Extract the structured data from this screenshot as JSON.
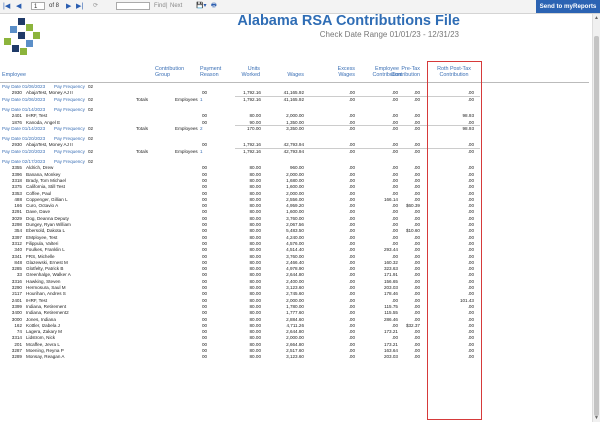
{
  "toolbar": {
    "page_value": "1",
    "page_of": "of 8",
    "find_label": "Find",
    "next_label": "Next",
    "send_button": "Send to myReports"
  },
  "report": {
    "title": "Alabama RSA Contributions File",
    "subtitle": "Check Date Range 01/01/23 - 12/31/23"
  },
  "columns": {
    "employee": "Employee",
    "contribution_group": "Contribution Group",
    "payment_reason": "Payment Reason",
    "units_worked": "Units Worked",
    "wages": "Wages",
    "excess_wages": "Excess Wages",
    "employee_contribution": "Employee Contribution",
    "pretax_contribution": "Pre-Tax Contribution",
    "roth_posttax_contribution": "Roth Post-Tax Contribution"
  },
  "rows": [
    {
      "kind": "pay",
      "paydate": "Pay Date 01/06/2023",
      "freqlabel": "Pay Frequency",
      "freq": "02"
    },
    {
      "kind": "emp",
      "id": "2930",
      "name": "AbajaTest, Money AJ II",
      "reason": "00",
      "units": "1,792.16",
      "wages": "41,165.92",
      "excess": ".00",
      "empc": ".00",
      "pretax": ".00",
      "roth": ".00"
    },
    {
      "kind": "tot",
      "paydate": "Pay Date 01/06/2023",
      "freqlabel": "Pay Frequency",
      "freq": "02",
      "totals": "Totals",
      "emplabel": "Employees",
      "count": "1",
      "units": "1,792.16",
      "wages": "41,165.92",
      "excess": ".00",
      "empc": ".00",
      "pretax": ".00",
      "roth": ".00"
    },
    {
      "kind": "gap"
    },
    {
      "kind": "pay",
      "paydate": "Pay Date 01/14/2023",
      "freqlabel": "Pay Frequency",
      "freq": "02"
    },
    {
      "kind": "emp",
      "id": "2401",
      "name": "IHRF, Test",
      "reason": "00",
      "units": "80.00",
      "wages": "2,000.00",
      "excess": ".00",
      "empc": ".00",
      "pretax": ".00",
      "roth": "98.93"
    },
    {
      "kind": "emp",
      "id": "1876",
      "name": "Kanoda, Angel E",
      "reason": "00",
      "units": "90.00",
      "wages": "1,350.00",
      "excess": ".00",
      "empc": ".00",
      "pretax": ".00",
      "roth": ".00"
    },
    {
      "kind": "tot",
      "paydate": "Pay Date 01/14/2023",
      "freqlabel": "Pay Frequency",
      "freq": "02",
      "totals": "Totals",
      "emplabel": "Employees",
      "count": "2",
      "units": "170.00",
      "wages": "3,350.00",
      "excess": ".00",
      "empc": ".00",
      "pretax": ".00",
      "roth": "98.93"
    },
    {
      "kind": "gap"
    },
    {
      "kind": "pay",
      "paydate": "Pay Date 01/20/2023",
      "freqlabel": "Pay Frequency",
      "freq": "02"
    },
    {
      "kind": "emp",
      "id": "2930",
      "name": "AbajaTest, Money AJ II",
      "reason": "00",
      "units": "1,792.16",
      "wages": "42,793.94",
      "excess": ".00",
      "empc": ".00",
      "pretax": ".00",
      "roth": ".00"
    },
    {
      "kind": "tot",
      "paydate": "Pay Date 01/20/2023",
      "freqlabel": "Pay Frequency",
      "freq": "02",
      "totals": "Totals",
      "emplabel": "Employees",
      "count": "1",
      "units": "1,792.16",
      "wages": "42,793.94",
      "excess": ".00",
      "empc": ".00",
      "pretax": ".00",
      "roth": ".00"
    },
    {
      "kind": "gap"
    },
    {
      "kind": "pay",
      "paydate": "Pay Date 02/17/2023",
      "freqlabel": "Pay Frequency",
      "freq": "02"
    },
    {
      "kind": "emp",
      "id": "3355",
      "name": "Aldrich, Drew",
      "reason": "00",
      "units": "80.00",
      "wages": "960.00",
      "excess": ".00",
      "empc": ".00",
      "pretax": ".00",
      "roth": ".00"
    },
    {
      "kind": "emp",
      "id": "3396",
      "name": "Banana, Monkey",
      "reason": "00",
      "units": "80.00",
      "wages": "2,000.00",
      "excess": ".00",
      "empc": ".00",
      "pretax": ".00",
      "roth": ".00"
    },
    {
      "kind": "emp",
      "id": "3318",
      "name": "Brady, Tom Michael",
      "reason": "00",
      "units": "80.00",
      "wages": "1,680.00",
      "excess": ".00",
      "empc": ".00",
      "pretax": ".00",
      "roth": ".00"
    },
    {
      "kind": "emp",
      "id": "3375",
      "name": "California, Still Test",
      "reason": "00",
      "units": "80.00",
      "wages": "1,600.00",
      "excess": ".00",
      "empc": ".00",
      "pretax": ".00",
      "roth": ".00"
    },
    {
      "kind": "emp",
      "id": "3353",
      "name": "Coffee, Paul",
      "reason": "00",
      "units": "80.00",
      "wages": "2,000.00",
      "excess": ".00",
      "empc": ".00",
      "pretax": ".00",
      "roth": ".00"
    },
    {
      "kind": "emp",
      "id": "488",
      "name": "Coppenger, Gillian L",
      "reason": "00",
      "units": "80.00",
      "wages": "2,556.00",
      "excess": ".00",
      "empc": "166.14",
      "pretax": ".00",
      "roth": ".00"
    },
    {
      "kind": "emp",
      "id": "166",
      "name": "Curo, Octavio A",
      "reason": "00",
      "units": "80.00",
      "wages": "4,959.20",
      "excess": ".00",
      "empc": ".00",
      "pretax": "$60.39",
      "roth": ".00"
    },
    {
      "kind": "emp",
      "id": "3291",
      "name": "Dave, Dave",
      "reason": "00",
      "units": "80.00",
      "wages": "1,600.00",
      "excess": ".00",
      "empc": ".00",
      "pretax": ".00",
      "roth": ".00"
    },
    {
      "kind": "emp",
      "id": "3029",
      "name": "Dog, Deanna Deputy",
      "reason": "00",
      "units": "80.00",
      "wages": "3,760.00",
      "excess": ".00",
      "empc": ".00",
      "pretax": ".00",
      "roth": ".00"
    },
    {
      "kind": "emp",
      "id": "3298",
      "name": "Dungey, Ryan William",
      "reason": "00",
      "units": "80.00",
      "wages": "2,067.56",
      "excess": ".00",
      "empc": ".00",
      "pretax": ".00",
      "roth": ".00"
    },
    {
      "kind": "emp",
      "id": "354",
      "name": "Ebersold, Dakota L",
      "reason": "00",
      "units": "80.00",
      "wages": "5,483.50",
      "excess": ".00",
      "empc": ".00",
      "pretax": "$10.60",
      "roth": ".00"
    },
    {
      "kind": "emp",
      "id": "3397",
      "name": "EMployee, Test",
      "reason": "00",
      "units": "80.00",
      "wages": "4,240.00",
      "excess": ".00",
      "empc": ".00",
      "pretax": ".00",
      "roth": ".00"
    },
    {
      "kind": "emp",
      "id": "3312",
      "name": "Filippula, Valteri",
      "reason": "00",
      "units": "80.00",
      "wages": "4,576.00",
      "excess": ".00",
      "empc": ".00",
      "pretax": ".00",
      "roth": ".00"
    },
    {
      "kind": "emp",
      "id": "340",
      "name": "Foulkes, Franklin L",
      "reason": "00",
      "units": "80.00",
      "wages": "4,514.40",
      "excess": ".00",
      "empc": "293.44",
      "pretax": ".00",
      "roth": ".00"
    },
    {
      "kind": "emp",
      "id": "3341",
      "name": "FRS, Michelle",
      "reason": "00",
      "units": "80.00",
      "wages": "3,760.00",
      "excess": ".00",
      "empc": ".00",
      "pretax": ".00",
      "roth": ".00"
    },
    {
      "kind": "emp",
      "id": "848",
      "name": "Glazewski, Ernest M",
      "reason": "00",
      "units": "80.00",
      "wages": "2,466.40",
      "excess": ".00",
      "empc": "160.32",
      "pretax": ".00",
      "roth": ".00"
    },
    {
      "kind": "emp",
      "id": "3285",
      "name": "Glotfelty, Patrick B",
      "reason": "00",
      "units": "80.00",
      "wages": "4,978.90",
      "excess": ".00",
      "empc": "323.63",
      "pretax": ".00",
      "roth": ".00"
    },
    {
      "kind": "emp",
      "id": "33",
      "name": "Greenhalge, Walker A",
      "reason": "00",
      "units": "80.00",
      "wages": "2,644.80",
      "excess": ".00",
      "empc": "171.91",
      "pretax": ".00",
      "roth": ".00"
    },
    {
      "kind": "emp",
      "id": "3316",
      "name": "Hawking, Steven",
      "reason": "00",
      "units": "80.00",
      "wages": "2,400.00",
      "excess": ".00",
      "empc": "156.65",
      "pretax": ".00",
      "roth": ".00"
    },
    {
      "kind": "emp",
      "id": "3290",
      "name": "Hermosura, Saul M",
      "reason": "00",
      "units": "80.00",
      "wages": "3,123.60",
      "excess": ".00",
      "empc": "203.03",
      "pretax": ".00",
      "roth": ".00"
    },
    {
      "kind": "emp",
      "id": "2117",
      "name": "Hourihan, Andres S",
      "reason": "00",
      "units": "80.00",
      "wages": "2,745.60",
      "excess": ".00",
      "empc": "178.46",
      "pretax": ".00",
      "roth": ".00"
    },
    {
      "kind": "emp",
      "id": "2401",
      "name": "IHRF, Test",
      "reason": "00",
      "units": "80.00",
      "wages": "2,000.00",
      "excess": ".00",
      "empc": ".00",
      "pretax": ".00",
      "roth": "101.43"
    },
    {
      "kind": "emp",
      "id": "3399",
      "name": "Indiana, Retirement",
      "reason": "00",
      "units": "80.00",
      "wages": "1,780.00",
      "excess": ".00",
      "empc": "115.75",
      "pretax": ".00",
      "roth": ".00"
    },
    {
      "kind": "emp",
      "id": "3400",
      "name": "Indiana, Retirement2",
      "reason": "00",
      "units": "80.00",
      "wages": "1,777.60",
      "excess": ".00",
      "empc": "115.55",
      "pretax": ".00",
      "roth": ".00"
    },
    {
      "kind": "emp",
      "id": "3000",
      "name": "Jones, Indiana",
      "reason": "00",
      "units": "80.00",
      "wages": "2,884.60",
      "excess": ".00",
      "empc": "286.46",
      "pretax": ".00",
      "roth": ".00"
    },
    {
      "kind": "emp",
      "id": "162",
      "name": "Kottler, Izabela J",
      "reason": "00",
      "units": "80.00",
      "wages": "4,711.26",
      "excess": ".00",
      "empc": ".00",
      "pretax": "$32.37",
      "roth": ".00"
    },
    {
      "kind": "emp",
      "id": "74",
      "name": "Lagera, Zakary M",
      "reason": "00",
      "units": "80.00",
      "wages": "2,644.80",
      "excess": ".00",
      "empc": "173.21",
      "pretax": ".00",
      "roth": ".00"
    },
    {
      "kind": "emp",
      "id": "3314",
      "name": "Lidstrom, Nick",
      "reason": "00",
      "units": "80.00",
      "wages": "2,000.00",
      "excess": ".00",
      "empc": ".00",
      "pretax": ".00",
      "roth": ".00"
    },
    {
      "kind": "emp",
      "id": "201",
      "name": "Mcaffee, Jevra L",
      "reason": "00",
      "units": "80.00",
      "wages": "2,664.80",
      "excess": ".00",
      "empc": "173.21",
      "pretax": ".00",
      "roth": ".00"
    },
    {
      "kind": "emp",
      "id": "3287",
      "name": "Moening, Reyna P",
      "reason": "00",
      "units": "80.00",
      "wages": "2,517.60",
      "excess": ".00",
      "empc": "163.64",
      "pretax": ".00",
      "roth": ".00"
    },
    {
      "kind": "emp",
      "id": "3289",
      "name": "Monsay, Reagan A",
      "reason": "00",
      "units": "80.00",
      "wages": "3,123.60",
      "excess": ".00",
      "empc": "203.03",
      "pretax": ".00",
      "roth": ".00"
    }
  ],
  "colors": {
    "accent": "#2f6db5",
    "send_button": "#2b63b3",
    "highlight_box": "#d63a3a",
    "logo_dark": "#1f3a68",
    "logo_green": "#8cb43c",
    "logo_blue": "#5b8fc8"
  }
}
